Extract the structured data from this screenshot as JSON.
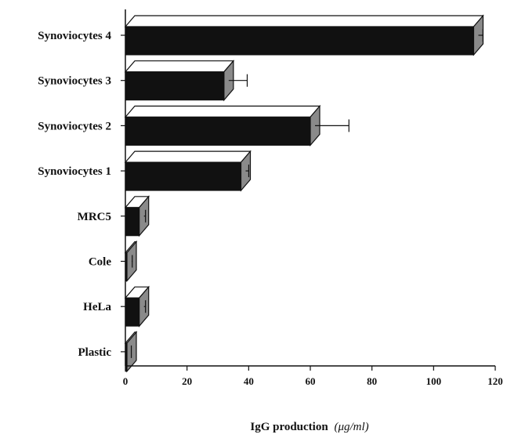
{
  "chart_data": {
    "type": "bar",
    "orientation": "horizontal",
    "categories": [
      "Synoviocytes 4",
      "Synoviocytes 3",
      "Synoviocytes 2",
      "Synoviocytes 1",
      "MRC5",
      "Cole",
      "HeLa",
      "Plastic"
    ],
    "values": [
      113,
      32,
      60,
      37.5,
      4.5,
      0.5,
      4.5,
      0.3
    ],
    "errors": [
      1.5,
      6,
      11,
      1,
      0.5,
      0.2,
      0.5,
      0.1
    ],
    "xlabel_main": "IgG production",
    "xlabel_unit": "(μg/ml)",
    "xlim": [
      0,
      120
    ],
    "xticks": [
      0,
      20,
      40,
      60,
      80,
      100,
      120
    ],
    "grid": false,
    "bar_color": "#111111",
    "bar_top_color": "#ffffff",
    "bar_side_color": "#8a8a8a"
  }
}
